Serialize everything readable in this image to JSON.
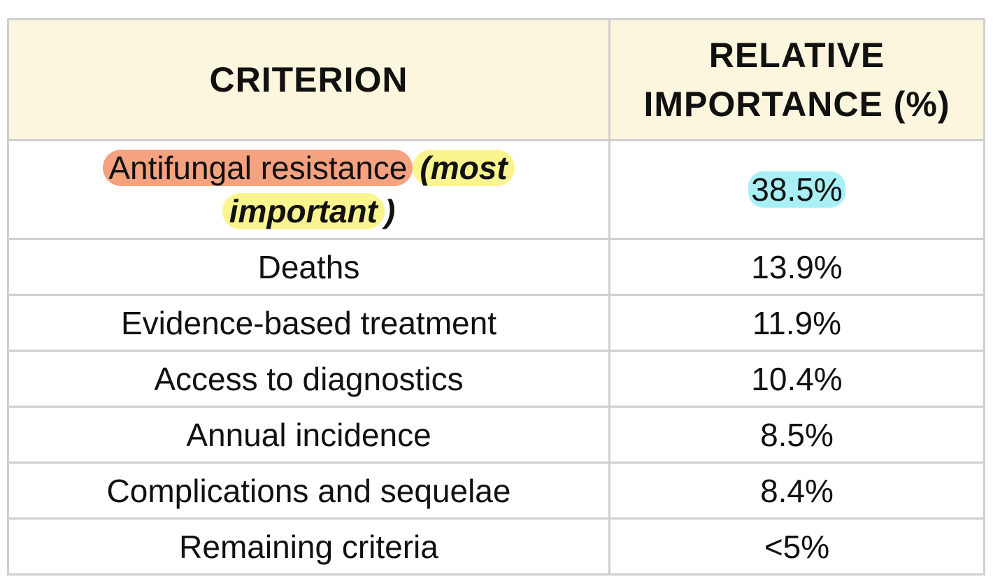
{
  "table": {
    "headers": {
      "criterion": "CRITERION",
      "importance_line1": "RELATIVE",
      "importance_line2": "IMPORTANCE (%)"
    },
    "first_row": {
      "criterion_main": "Antifungal resistance",
      "criterion_note_open": "(most",
      "criterion_note_close": "important",
      "criterion_paren": ")",
      "value": "38.5%"
    },
    "rows": [
      {
        "criterion": "Deaths",
        "value": "13.9%"
      },
      {
        "criterion": "Evidence-based treatment",
        "value": "11.9%"
      },
      {
        "criterion": "Access to diagnostics",
        "value": "10.4%"
      },
      {
        "criterion": "Annual incidence",
        "value": "8.5%"
      },
      {
        "criterion": "Complications and sequelae",
        "value": "8.4%"
      },
      {
        "criterion": "Remaining criteria",
        "value": "<5%"
      }
    ]
  },
  "colors": {
    "header_bg": "#fdf6de",
    "highlight_red": "#f4a27f",
    "highlight_yellow": "#fbf58f",
    "highlight_cyan": "#a9f0f6",
    "border": "#cfcfcf"
  }
}
